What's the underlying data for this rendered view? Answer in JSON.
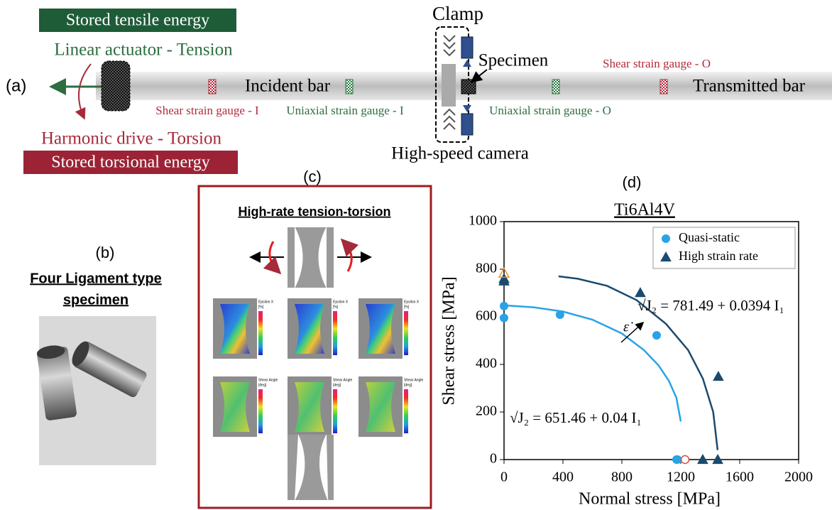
{
  "panel_a": {
    "label": "(a)",
    "stored_tensile": "Stored tensile energy",
    "linear_actuator": "Linear actuator - Tension",
    "harmonic_drive": "Harmonic drive - Torsion",
    "stored_torsional": "Stored torsional energy",
    "incident_bar": "Incident bar",
    "transmitted_bar": "Transmitted bar",
    "clamp": "Clamp",
    "specimen": "Specimen",
    "camera": "High-speed camera",
    "shear_gauge_i": "Shear strain gauge - I",
    "uniaxial_gauge_i": "Uniaxial strain gauge - I",
    "uniaxial_gauge_o": "Uniaxial strain gauge - O",
    "shear_gauge_o": "Shear strain gauge - O"
  },
  "panel_b": {
    "label": "(b)",
    "title_line1": "Four Ligament type",
    "title_line2": "specimen"
  },
  "panel_c": {
    "label": "(c)",
    "title": "High-rate tension-torsion",
    "strain_label": "Epsilon X",
    "strain_unit": "[%]",
    "angle_label": "Shear Angle",
    "angle_unit": "[deg]"
  },
  "chart_data": {
    "type": "scatter",
    "panel_label": "(d)",
    "title": "Ti6Al4V",
    "x_label": "Normal stress [MPa]",
    "y_label": "Shear stress [MPa]",
    "xlim": [
      0,
      2000
    ],
    "ylim": [
      0,
      1000
    ],
    "xticks": [
      0,
      400,
      800,
      1200,
      1600,
      2000
    ],
    "yticks": [
      0,
      200,
      400,
      600,
      800,
      1000
    ],
    "legend": "upper right",
    "series": [
      {
        "name": "Quasi-static",
        "color": "#29a3e6",
        "marker": "circle",
        "x": [
          0,
          0,
          380,
          1036,
          1171,
          1178
        ],
        "y": [
          645,
          595,
          609,
          522,
          0,
          0
        ]
      },
      {
        "name": "High strain rate",
        "color": "#1b4a6e",
        "marker": "triangle",
        "x": [
          0,
          0,
          925,
          1455,
          1349,
          1451
        ],
        "y": [
          760,
          750,
          701,
          349,
          0,
          0
        ]
      }
    ],
    "extra_points": [
      {
        "color": "#e8922b",
        "marker": "triangle-open",
        "x": 0,
        "y": 783
      },
      {
        "color": "#e04a3a",
        "marker": "circle-open",
        "x": 1229,
        "y": 0
      }
    ],
    "fits": [
      {
        "label": "√J₂ = 651.46 + 0.04 I₁",
        "color": "#29a3e6",
        "x": [
          0,
          200,
          400,
          600,
          800,
          950,
          1050,
          1120,
          1170,
          1200
        ],
        "y": [
          648,
          640,
          622,
          588,
          530,
          460,
          395,
          330,
          260,
          160
        ]
      },
      {
        "label": "√J₂ = 781.49 + 0.0394 I₁",
        "color": "#1b4a6e",
        "x": [
          370,
          500,
          700,
          900,
          1100,
          1250,
          1350,
          1420,
          1450
        ],
        "y": [
          770,
          760,
          730,
          670,
          570,
          460,
          340,
          200,
          40
        ]
      }
    ],
    "annotation": "ε̇"
  }
}
